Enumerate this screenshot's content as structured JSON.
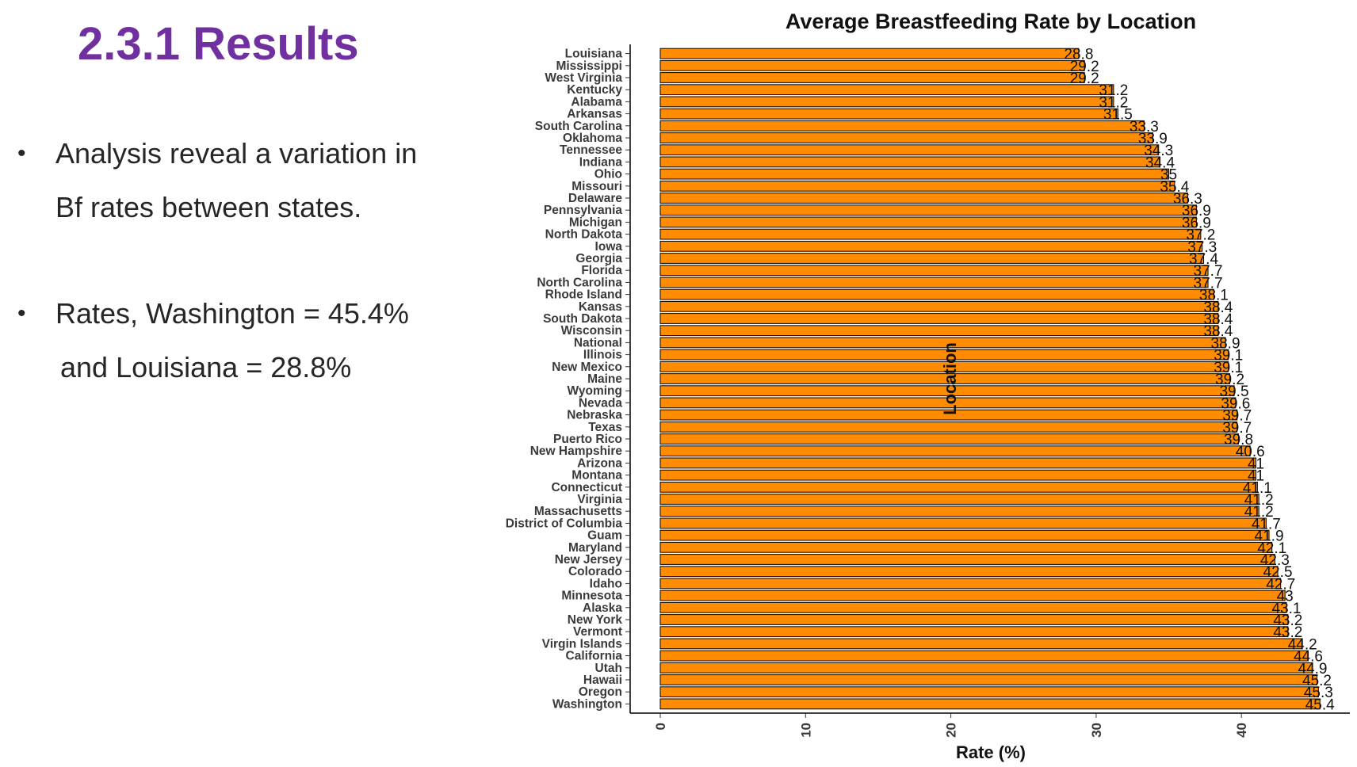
{
  "slide": {
    "title": "2.3.1 Results",
    "bullets": [
      {
        "line1": "Analysis reveal a variation in",
        "line2": "Bf rates between states."
      },
      {
        "line1": "Rates, Washington = 45.4%",
        "line2": "and Louisiana = 28.8%"
      }
    ],
    "bullet_symbol": "•"
  },
  "chart_data": {
    "type": "bar",
    "orientation": "horizontal",
    "title": "Average Breastfeeding Rate by Location",
    "xlabel": "Rate (%)",
    "ylabel": "Location",
    "xlim": [
      0,
      47
    ],
    "xticks": [
      0,
      10,
      20,
      30,
      40
    ],
    "bar_color": "#ff8c00",
    "bar_edge_color": "#000000",
    "grid": false,
    "categories": [
      "Louisiana",
      "Mississippi",
      "West Virginia",
      "Kentucky",
      "Alabama",
      "Arkansas",
      "South Carolina",
      "Oklahoma",
      "Tennessee",
      "Indiana",
      "Ohio",
      "Missouri",
      "Delaware",
      "Pennsylvania",
      "Michigan",
      "North Dakota",
      "Iowa",
      "Georgia",
      "Florida",
      "North Carolina",
      "Rhode Island",
      "Kansas",
      "South Dakota",
      "Wisconsin",
      "National",
      "Illinois",
      "New Mexico",
      "Maine",
      "Wyoming",
      "Nevada",
      "Nebraska",
      "Texas",
      "Puerto Rico",
      "New Hampshire",
      "Arizona",
      "Montana",
      "Connecticut",
      "Virginia",
      "Massachusetts",
      "District of Columbia",
      "Guam",
      "Maryland",
      "New Jersey",
      "Colorado",
      "Idaho",
      "Minnesota",
      "Alaska",
      "New York",
      "Vermont",
      "Virgin Islands",
      "California",
      "Utah",
      "Hawaii",
      "Oregon",
      "Washington"
    ],
    "values": [
      28.8,
      29.2,
      29.2,
      31.2,
      31.2,
      31.5,
      33.3,
      33.9,
      34.3,
      34.4,
      35,
      35.4,
      36.3,
      36.9,
      36.9,
      37.2,
      37.3,
      37.4,
      37.7,
      37.7,
      38.1,
      38.4,
      38.4,
      38.4,
      38.9,
      39.1,
      39.1,
      39.2,
      39.5,
      39.6,
      39.7,
      39.7,
      39.8,
      40.6,
      41,
      41,
      41.1,
      41.2,
      41.2,
      41.7,
      41.9,
      42.1,
      42.3,
      42.5,
      42.7,
      43,
      43.1,
      43.2,
      43.2,
      44.2,
      44.6,
      44.9,
      45.2,
      45.3,
      45.4
    ],
    "data_labels": [
      "28.8",
      "29.2",
      "29.2",
      "31.2",
      "31.2",
      "31.5",
      "33.3",
      "33.9",
      "34.3",
      "34.4",
      "35",
      "35.4",
      "36.3",
      "36.9",
      "36.9",
      "37.2",
      "37.3",
      "37.4",
      "37.7",
      "37.7",
      "38.1",
      "38.4",
      "38.4",
      "38.4",
      "38.9",
      "39.1",
      "39.1",
      "39.2",
      "39.5",
      "39.6",
      "39.7",
      "39.7",
      "39.8",
      "40.6",
      "41",
      "41",
      "41.1",
      "41.2",
      "41.2",
      "41.7",
      "41.9",
      "42.1",
      "42.3",
      "42.5",
      "42.7",
      "43",
      "43.1",
      "43.2",
      "43.2",
      "44.2",
      "44.6",
      "44.9",
      "45.2",
      "45.3",
      "45.4"
    ]
  }
}
